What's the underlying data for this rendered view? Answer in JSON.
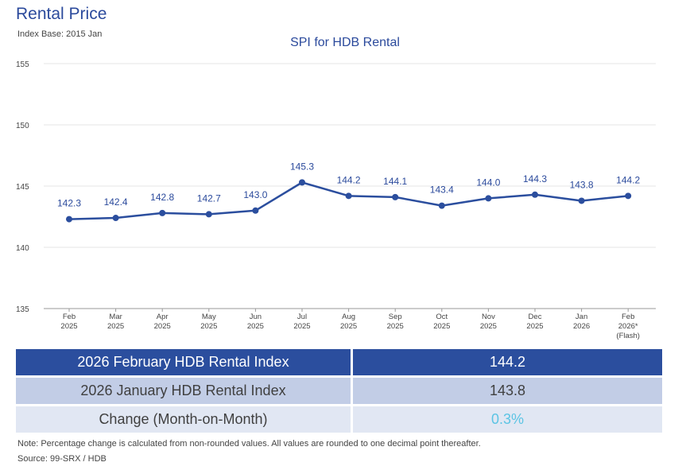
{
  "header": {
    "title": "Rental Price",
    "subtitle": "Index Base: 2015 Jan"
  },
  "chart_data": {
    "type": "line",
    "title": "SPI for HDB Rental",
    "xlabel": "",
    "ylabel": "",
    "ylim": [
      135,
      155
    ],
    "yticks": [
      135,
      140,
      145,
      150,
      155
    ],
    "grid": true,
    "categories": [
      [
        "Feb",
        "2025"
      ],
      [
        "Mar",
        "2025"
      ],
      [
        "Apr",
        "2025"
      ],
      [
        "May",
        "2025"
      ],
      [
        "Jun",
        "2025"
      ],
      [
        "Jul",
        "2025"
      ],
      [
        "Aug",
        "2025"
      ],
      [
        "Sep",
        "2025"
      ],
      [
        "Oct",
        "2025"
      ],
      [
        "Nov",
        "2025"
      ],
      [
        "Dec",
        "2025"
      ],
      [
        "Jan",
        "2026"
      ],
      [
        "Feb",
        "2026*",
        "(Flash)"
      ]
    ],
    "series": [
      {
        "values": [
          142.3,
          142.4,
          142.8,
          142.7,
          143.0,
          145.3,
          144.2,
          144.1,
          143.4,
          144.0,
          144.3,
          143.8,
          144.2
        ],
        "labels": [
          "142.3",
          "142.4",
          "142.8",
          "142.7",
          "143.0",
          "145.3",
          "144.2",
          "144.1",
          "143.4",
          "144.0",
          "144.3",
          "143.8",
          "144.2"
        ],
        "color": "#2b4e9e"
      }
    ],
    "colors": {
      "line": "#2b4e9e",
      "label": "#2b4a9c",
      "axis": "#9a9a9a",
      "grid": "#e6e6e6",
      "tick_text": "#444444"
    }
  },
  "table": {
    "rows": [
      {
        "label": "2026 February HDB Rental Index",
        "value": "144.2"
      },
      {
        "label": "2026 January HDB Rental Index",
        "value": "143.8"
      },
      {
        "label": "Change (Month-on-Month)",
        "value": "0.3%"
      }
    ],
    "colors": {
      "header_bg": "#2b4e9e",
      "row1_bg": "#c2cde6",
      "row2_bg": "#e1e7f3",
      "change_text": "#5bc4e4"
    }
  },
  "footer": {
    "note": "Note: Percentage change is calculated from non-rounded values.  All values are rounded to one decimal point thereafter.",
    "source": "Source: 99-SRX / HDB"
  }
}
